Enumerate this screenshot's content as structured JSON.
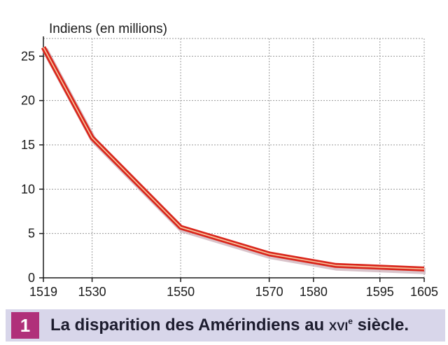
{
  "chart_data": {
    "type": "line",
    "ylabel": "Indiens (en millions)",
    "xlabel": "",
    "x": [
      1519,
      1530,
      1550,
      1570,
      1585,
      1605
    ],
    "series": [
      {
        "values": [
          26,
          15.8,
          5.7,
          2.7,
          1.4,
          1.0
        ]
      }
    ],
    "xticks": [
      1519,
      1530,
      1550,
      1570,
      1580,
      1595,
      1605
    ],
    "yticks": [
      0,
      5,
      10,
      15,
      20,
      25
    ],
    "xlim": [
      1519,
      1605
    ],
    "ylim": [
      0,
      27
    ],
    "grid": true,
    "line_color": "#d9261c",
    "line_highlight": "#f7c8a0"
  },
  "caption": {
    "number": "1",
    "text_before": "La disparition des Amérindiens au ",
    "century": "XVI",
    "century_sup": "e",
    "text_after": " siècle."
  }
}
